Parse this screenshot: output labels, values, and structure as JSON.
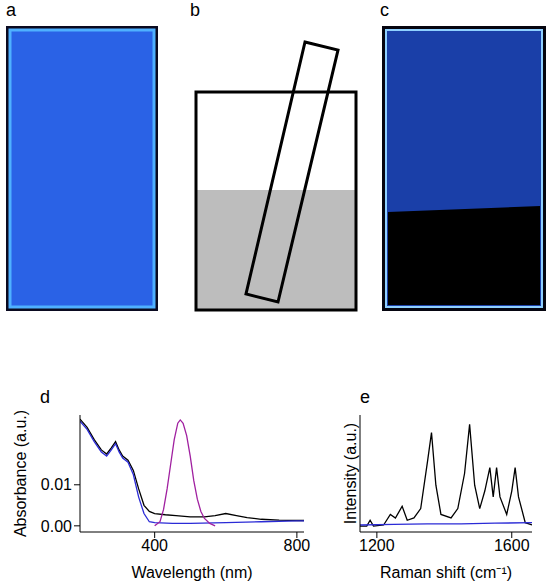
{
  "images": [
    {
      "panel": "a"
    },
    {
      "panel": "b"
    },
    {
      "panel": "c"
    }
  ],
  "chart_data": [
    {
      "panel": "d",
      "type": "line",
      "x_label": "Wavelength (nm)",
      "y_label": "Absorbance (a.u.)",
      "xlim": [
        190,
        820
      ],
      "xticks": [
        400,
        800
      ],
      "ylim": [
        -0.0015,
        0.027
      ],
      "yticks": [
        {
          "value": 0,
          "label": "0.00"
        },
        {
          "value": 0.01,
          "label": "0.01"
        }
      ],
      "series": [
        {
          "color": "#000000",
          "x": [
            190,
            210,
            230,
            250,
            265,
            278,
            290,
            300,
            310,
            325,
            340,
            355,
            370,
            385,
            400,
            430,
            460,
            500,
            540,
            570,
            600,
            630,
            660,
            700,
            750,
            800,
            820
          ],
          "values": [
            0.026,
            0.024,
            0.021,
            0.0185,
            0.0175,
            0.019,
            0.0205,
            0.0185,
            0.017,
            0.016,
            0.0135,
            0.009,
            0.005,
            0.0035,
            0.003,
            0.0027,
            0.0025,
            0.0022,
            0.0022,
            0.0025,
            0.003,
            0.0025,
            0.002,
            0.0016,
            0.0014,
            0.0013,
            0.0013
          ]
        },
        {
          "color": "#2b2bd6",
          "x": [
            190,
            210,
            230,
            250,
            265,
            278,
            290,
            300,
            310,
            325,
            340,
            355,
            370,
            385,
            400,
            450,
            500,
            600,
            700,
            800,
            820
          ],
          "values": [
            0.0255,
            0.0235,
            0.0205,
            0.018,
            0.017,
            0.0185,
            0.02,
            0.018,
            0.0165,
            0.0155,
            0.0125,
            0.007,
            0.003,
            0.001,
            0.0008,
            0.0006,
            0.0006,
            0.0008,
            0.001,
            0.0012,
            0.0012
          ]
        },
        {
          "color": "#a020a0",
          "x": [
            400,
            415,
            425,
            435,
            445,
            455,
            465,
            472,
            480,
            490,
            500,
            510,
            520,
            530,
            540,
            555,
            570
          ],
          "values": [
            0,
            0.001,
            0.004,
            0.009,
            0.015,
            0.021,
            0.025,
            0.0258,
            0.025,
            0.022,
            0.017,
            0.011,
            0.0065,
            0.0035,
            0.0018,
            0.0006,
            0
          ]
        }
      ]
    },
    {
      "panel": "e",
      "type": "line",
      "x_label": "Raman shift (cm⁻¹)",
      "y_label": "Intensity (a.u.)",
      "tick_labels": "x",
      "xlim": [
        1150,
        1660
      ],
      "xticks": [
        1200,
        1600
      ],
      "ylim": [
        0,
        1
      ],
      "series": [
        {
          "color": "#000000",
          "x": [
            1150,
            1170,
            1180,
            1190,
            1220,
            1240,
            1255,
            1275,
            1290,
            1310,
            1330,
            1350,
            1362,
            1375,
            1390,
            1420,
            1440,
            1460,
            1475,
            1490,
            1505,
            1520,
            1535,
            1545,
            1555,
            1565,
            1585,
            1600,
            1610,
            1620,
            1640,
            1660
          ],
          "values": [
            0.05,
            0.05,
            0.1,
            0.05,
            0.06,
            0.15,
            0.12,
            0.22,
            0.1,
            0.12,
            0.2,
            0.6,
            0.85,
            0.4,
            0.15,
            0.12,
            0.2,
            0.5,
            0.92,
            0.4,
            0.2,
            0.35,
            0.55,
            0.3,
            0.55,
            0.3,
            0.15,
            0.35,
            0.55,
            0.3,
            0.08,
            0.06
          ]
        },
        {
          "color": "#2b2bd6",
          "x": [
            1150,
            1250,
            1350,
            1450,
            1550,
            1660
          ],
          "values": [
            0.06,
            0.065,
            0.07,
            0.07,
            0.075,
            0.08
          ]
        }
      ]
    }
  ]
}
